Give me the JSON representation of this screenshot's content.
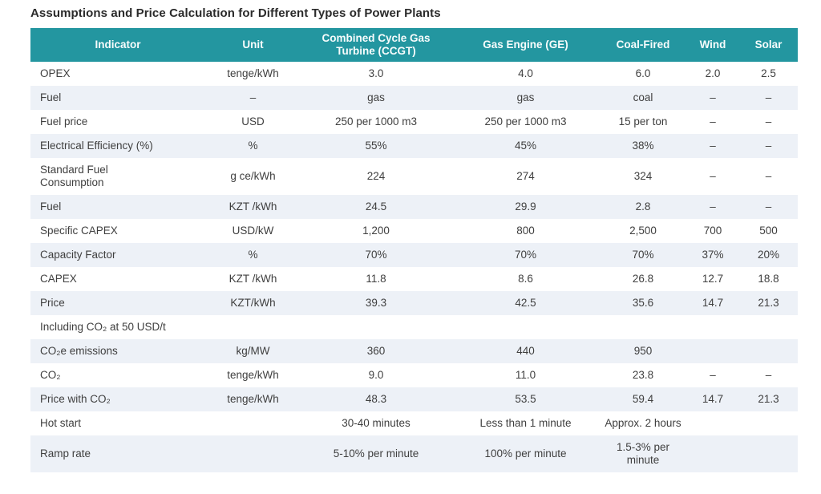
{
  "title": "Assumptions and Price Calculation for Different Types of Power Plants",
  "colors": {
    "header_bg": "#2396a0",
    "header_text": "#f7fcfc",
    "stripe_bg": "#edf1f7",
    "row_bg": "#ffffff",
    "body_text": "#3f3f3f",
    "title_text": "#2b2b2b"
  },
  "chart_data": {
    "type": "table",
    "title": "Assumptions and Price Calculation for Different Types of Power Plants",
    "columns": [
      "Indicator",
      "Unit",
      "Combined Cycle Gas Turbine (CCGT)",
      "Gas Engine (GE)",
      "Coal-Fired",
      "Wind",
      "Solar"
    ],
    "rows": [
      {
        "cells": [
          "OPEX",
          "tenge/kWh",
          "3.0",
          "4.0",
          "6.0",
          "2.0",
          "2.5"
        ]
      },
      {
        "cells": [
          "Fuel",
          "–",
          "gas",
          "gas",
          "coal",
          "–",
          "–"
        ]
      },
      {
        "cells": [
          "Fuel price",
          "USD",
          "250 per 1000 m3",
          "250 per 1000 m3",
          "15 per ton",
          "–",
          "–"
        ]
      },
      {
        "cells": [
          "Electrical Efficiency (%)",
          "%",
          "55%",
          "45%",
          "38%",
          "–",
          "–"
        ]
      },
      {
        "cells": [
          "Standard Fuel Consumption",
          "g ce/kWh",
          "224",
          "274",
          "324",
          "–",
          "–"
        ]
      },
      {
        "cells": [
          "Fuel",
          "KZT /kWh",
          "24.5",
          "29.9",
          "2.8",
          "–",
          "–"
        ]
      },
      {
        "cells": [
          "Specific CAPEX",
          "USD/kW",
          "1,200",
          "800",
          "2,500",
          "700",
          "500"
        ]
      },
      {
        "cells": [
          "Capacity Factor",
          "%",
          "70%",
          "70%",
          "70%",
          "37%",
          "20%"
        ]
      },
      {
        "cells": [
          "CAPEX",
          "KZT /kWh",
          "11.8",
          "8.6",
          "26.8",
          "12.7",
          "18.8"
        ]
      },
      {
        "cells": [
          "Price",
          "KZT/kWh",
          "39.3",
          "42.5",
          "35.6",
          "14.7",
          "21.3"
        ]
      },
      {
        "section": "Including CO₂ at 50 USD/t"
      },
      {
        "cells": [
          "CO₂e emissions",
          "kg/MW",
          "360",
          "440",
          "950",
          "",
          ""
        ]
      },
      {
        "cells": [
          "CO₂",
          "tenge/kWh",
          "9.0",
          "11.0",
          "23.8",
          "–",
          "–"
        ]
      },
      {
        "cells": [
          "Price with CO₂",
          "tenge/kWh",
          "48.3",
          "53.5",
          "59.4",
          "14.7",
          "21.3"
        ]
      },
      {
        "cells": [
          "Hot start",
          "",
          "30-40 minutes",
          "Less than 1 minute",
          "Approx. 2 hours",
          "",
          ""
        ]
      },
      {
        "cells": [
          "Ramp rate",
          "",
          "5-10% per minute",
          "100% per minute",
          "1.5-3% per minute",
          "",
          ""
        ]
      }
    ]
  }
}
